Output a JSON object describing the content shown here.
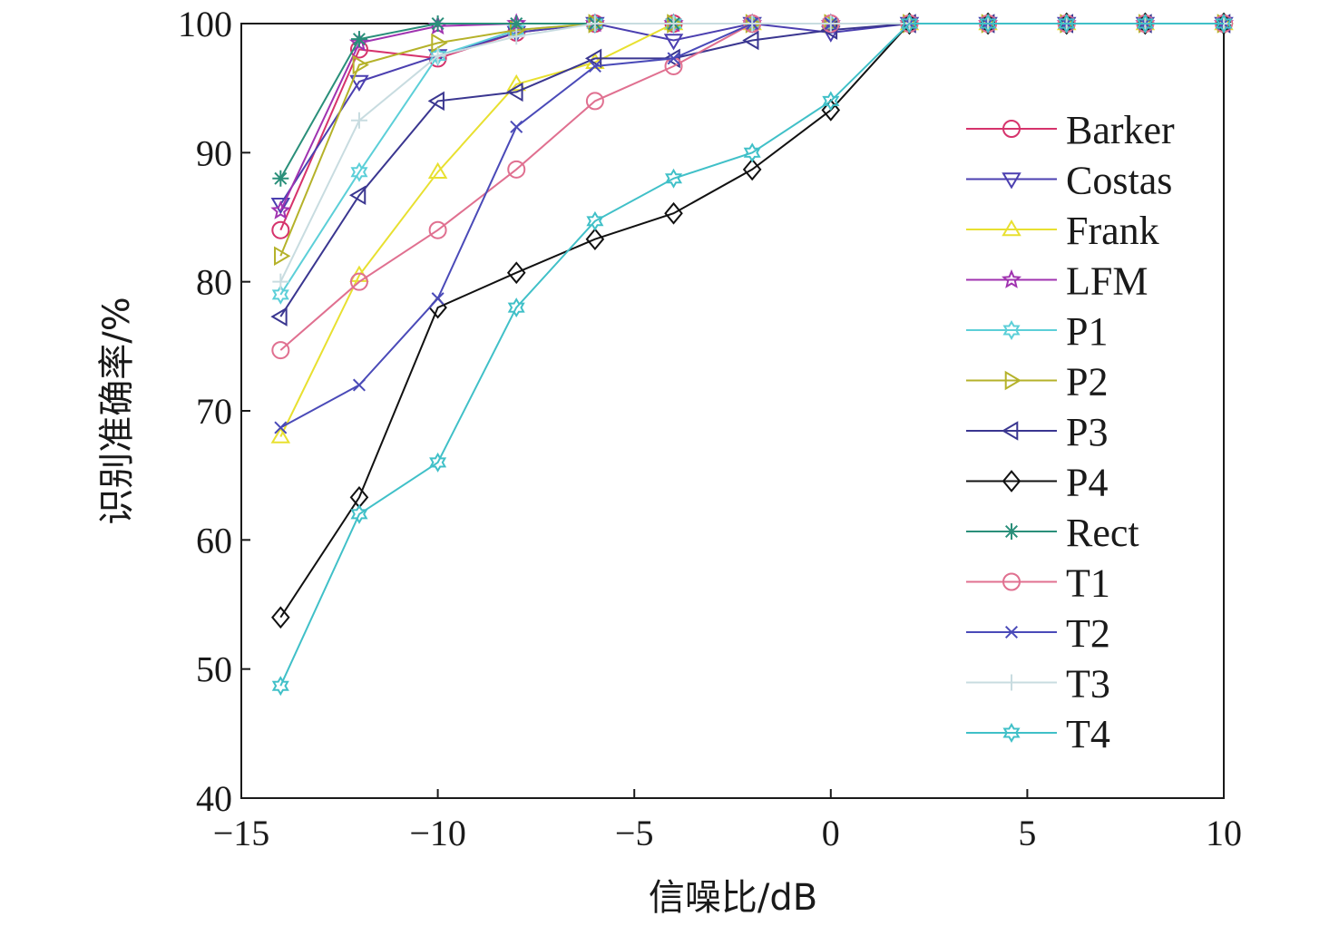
{
  "chart_data": {
    "type": "line",
    "xlabel": "信噪比/dB",
    "ylabel": "识别准确率/%",
    "xlim": [
      -15,
      10
    ],
    "ylim": [
      40,
      100
    ],
    "xticks": [
      -15,
      -10,
      -5,
      0,
      5,
      10
    ],
    "yticks": [
      40,
      50,
      60,
      70,
      80,
      90,
      100
    ],
    "xtick_labels": [
      "−15",
      "−10",
      "−5",
      "0",
      "5",
      "10"
    ],
    "ytick_labels": [
      "40",
      "50",
      "60",
      "70",
      "80",
      "90",
      "100"
    ],
    "grid": false,
    "legend_position": "right",
    "x": [
      -14,
      -12,
      -10,
      -8,
      -6,
      -4,
      -2,
      0,
      2,
      4,
      6,
      8,
      10
    ],
    "series": [
      {
        "name": "Barker",
        "color": "#d6336c",
        "marker": "circle",
        "values": [
          84,
          98,
          97.3,
          99.3,
          100,
          100,
          100,
          100,
          100,
          100,
          100,
          100,
          100
        ]
      },
      {
        "name": "Costas",
        "color": "#4b3fb0",
        "marker": "triangle-down",
        "values": [
          86,
          95.5,
          97.5,
          99.3,
          100,
          98.7,
          100,
          99.3,
          100,
          100,
          100,
          100,
          100
        ]
      },
      {
        "name": "Frank",
        "color": "#e8e030",
        "marker": "triangle-up",
        "values": [
          68,
          80.5,
          88.5,
          95.3,
          97,
          100,
          100,
          100,
          100,
          100,
          100,
          100,
          100
        ]
      },
      {
        "name": "LFM",
        "color": "#a033b0",
        "marker": "star",
        "values": [
          85.5,
          98.5,
          99.8,
          100,
          100,
          100,
          100,
          100,
          100,
          100,
          100,
          100,
          100
        ]
      },
      {
        "name": "P1",
        "color": "#5ccfd8",
        "marker": "hexagram",
        "values": [
          79,
          88.5,
          97.5,
          99.5,
          100,
          100,
          100,
          100,
          100,
          100,
          100,
          100,
          100
        ]
      },
      {
        "name": "P2",
        "color": "#b5b22a",
        "marker": "triangle-right",
        "values": [
          82,
          96.8,
          98.5,
          99.5,
          100,
          100,
          100,
          100,
          100,
          100,
          100,
          100,
          100
        ]
      },
      {
        "name": "P3",
        "color": "#3a3690",
        "marker": "triangle-left",
        "values": [
          77.3,
          86.7,
          94,
          94.7,
          97.3,
          97.3,
          98.7,
          99.5,
          100,
          100,
          100,
          100,
          100
        ]
      },
      {
        "name": "P4",
        "color": "#111111",
        "marker": "diamond",
        "values": [
          54,
          63.3,
          78,
          80.7,
          83.3,
          85.3,
          88.7,
          93.3,
          100,
          100,
          100,
          100,
          100
        ]
      },
      {
        "name": "Rect",
        "color": "#2a8f7a",
        "marker": "asterisk",
        "values": [
          88,
          98.8,
          100,
          100,
          100,
          100,
          100,
          100,
          100,
          100,
          100,
          100,
          100
        ]
      },
      {
        "name": "T1",
        "color": "#e07090",
        "marker": "circle",
        "values": [
          74.7,
          80,
          84,
          88.7,
          94,
          96.7,
          100,
          100,
          100,
          100,
          100,
          100,
          100
        ]
      },
      {
        "name": "T2",
        "color": "#4a4ab8",
        "marker": "x",
        "values": [
          68.7,
          72,
          78.7,
          92,
          96.7,
          97.3,
          100,
          100,
          100,
          100,
          100,
          100,
          100
        ]
      },
      {
        "name": "T3",
        "color": "#c8dce0",
        "marker": "plus",
        "values": [
          80,
          92.5,
          97.5,
          99,
          100,
          100,
          100,
          100,
          100,
          100,
          100,
          100,
          100
        ]
      },
      {
        "name": "T4",
        "color": "#40c0c8",
        "marker": "hexagram",
        "values": [
          48.7,
          62,
          66,
          78,
          84.7,
          88,
          90,
          94,
          100,
          100,
          100,
          100,
          100
        ]
      }
    ]
  }
}
